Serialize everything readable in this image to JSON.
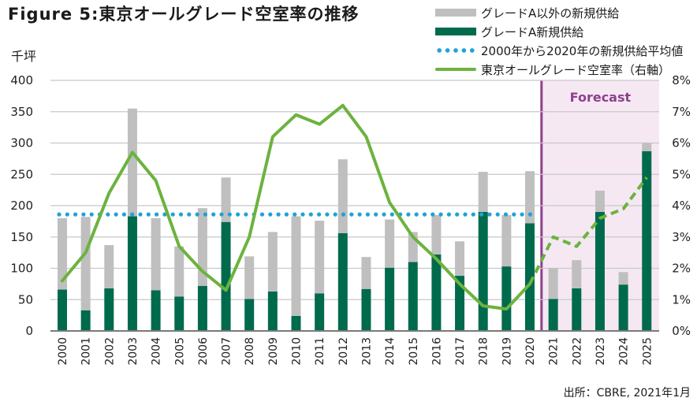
{
  "title": "Figure 5:東京オールグレード空室率の推移",
  "unit_left": "千坪",
  "source": "出所：CBRE, 2021年1月",
  "colors": {
    "non_grade_a": "#bfbfbf",
    "grade_a": "#006a4d",
    "average": "#1fa2d6",
    "vacancy": "#6cb33e",
    "forecast_line": "#8e3f8e",
    "forecast_bg": "#f5e8f3"
  },
  "legend": [
    {
      "key": "non_grade_a",
      "label": "グレードA以外の新規供給",
      "swatch": "gray-bar"
    },
    {
      "key": "grade_a",
      "label": "グレードA新規供給",
      "swatch": "green-bar"
    },
    {
      "key": "average",
      "label": "2000年から2020年の新規供給平均値",
      "swatch": "blue-dots"
    },
    {
      "key": "vacancy",
      "label": "東京オールグレード空室率（右軸）",
      "swatch": "green-line"
    }
  ],
  "chart_data": {
    "type": "bar",
    "subtype": "stacked bar with line on secondary axis",
    "title": "Figure 5:東京オールグレード空室率の推移",
    "xlabel": "",
    "ylabel": "千坪",
    "y2label": "空室率",
    "ylim": [
      0,
      400
    ],
    "yticks": [
      0,
      50,
      100,
      150,
      200,
      250,
      300,
      350,
      400
    ],
    "y2lim": [
      0,
      8
    ],
    "y2ticks": [
      "0%",
      "1%",
      "2%",
      "3%",
      "4%",
      "5%",
      "6%",
      "7%",
      "8%"
    ],
    "grid": true,
    "legend_position": "top-right",
    "categories": [
      "2000",
      "2001",
      "2002",
      "2003",
      "2004",
      "2005",
      "2006",
      "2007",
      "2008",
      "2009",
      "2010",
      "2011",
      "2012",
      "2013",
      "2014",
      "2015",
      "2016",
      "2017",
      "2018",
      "2019",
      "2020",
      "2021",
      "2022",
      "2023",
      "2024",
      "2025"
    ],
    "series": [
      {
        "name": "グレードA新規供給",
        "type": "bar",
        "stack": "supply",
        "values": [
          66,
          33,
          68,
          183,
          65,
          55,
          72,
          174,
          51,
          63,
          24,
          60,
          156,
          67,
          101,
          110,
          122,
          88,
          190,
          103,
          172,
          51,
          68,
          190,
          74,
          287
        ]
      },
      {
        "name": "グレードA以外の新規供給",
        "type": "bar",
        "stack": "supply",
        "values": [
          114,
          149,
          69,
          172,
          115,
          80,
          124,
          71,
          68,
          95,
          159,
          116,
          118,
          51,
          77,
          48,
          63,
          55,
          64,
          82,
          83,
          49,
          45,
          34,
          20,
          13
        ]
      },
      {
        "name": "2000年から2020年の新規供給平均値",
        "type": "line",
        "style": "dotted",
        "value": 186,
        "range": [
          "2000",
          "2020"
        ]
      },
      {
        "name": "東京オールグレード空室率（右軸）",
        "type": "line",
        "axis": "right",
        "unit": "%",
        "values": [
          1.6,
          2.5,
          4.4,
          5.7,
          4.8,
          2.7,
          1.9,
          1.3,
          3.0,
          6.2,
          6.9,
          6.6,
          7.2,
          6.2,
          4.1,
          3.0,
          2.3,
          1.5,
          0.8,
          0.7,
          1.5,
          3.0,
          2.7,
          3.6,
          3.9,
          4.9
        ],
        "forecast_from": "2020"
      }
    ],
    "annotations": [
      {
        "text": "Forecast",
        "region": [
          "2021",
          "2025"
        ]
      }
    ]
  }
}
